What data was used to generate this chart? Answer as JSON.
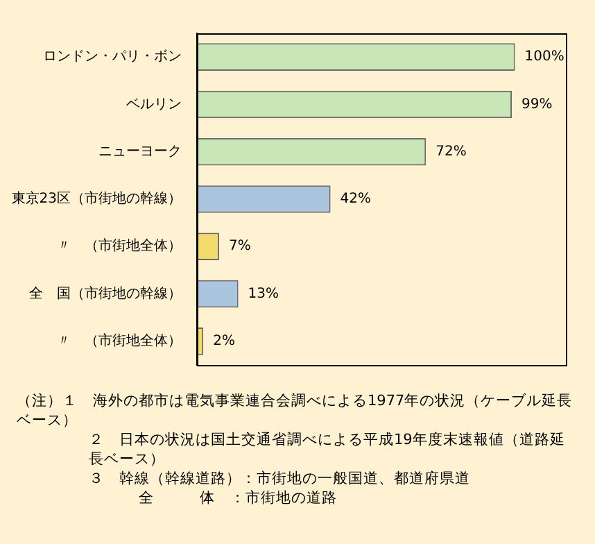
{
  "chart_data": {
    "type": "bar",
    "orientation": "horizontal",
    "categories": [
      "ロンドン・パリ・ボン",
      "ベルリン",
      "ニューヨーク",
      "東京23区（市街地の幹線）",
      "〃　（市街地全体）",
      "全　国（市街地の幹線）",
      "〃　（市街地全体）"
    ],
    "values": [
      100,
      99,
      72,
      42,
      7,
      13,
      2
    ],
    "value_labels": [
      "100%",
      "99%",
      "72%",
      "42%",
      "7%",
      "13%",
      "2%"
    ],
    "colors": [
      "#c9e6b6",
      "#c9e6b6",
      "#c9e6b6",
      "#abc5de",
      "#f4dc6c",
      "#abc5de",
      "#f4dc6c"
    ],
    "xlim": [
      0,
      116
    ],
    "tick_labels": "y",
    "annotations": [
      "（注）１　海外の都市は電気事業連合会調べによる1977年の状況（ケーブル延長ベース）",
      "２　日本の状況は国土交通省調べによる平成19年度末速報値（道路延長ベース）",
      "３　幹線（幹線道路）：市街地の一般国道、都道府県道",
      "全　　　体　：市街地の道路"
    ]
  }
}
